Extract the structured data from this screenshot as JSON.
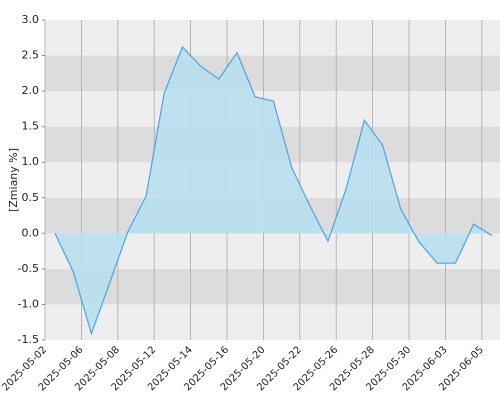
{
  "chart_data": {
    "type": "area",
    "y_label": "[Zmiany %]",
    "categories": [
      "2025-05-02",
      null,
      "2025-05-06",
      null,
      "2025-05-08",
      null,
      "2025-05-12",
      null,
      "2025-05-14",
      null,
      "2025-05-16",
      null,
      "2025-05-20",
      null,
      "2025-05-22",
      null,
      "2025-05-26",
      null,
      "2025-05-28",
      null,
      "2025-05-30",
      null,
      "2025-06-03",
      null,
      "2025-06-05"
    ],
    "series": [
      {
        "color": "#4aa3e8",
        "fill": "#b8dff0",
        "values": [
          0.0,
          -0.54,
          -1.41,
          -0.7,
          0.02,
          0.52,
          1.97,
          2.62,
          2.35,
          2.17,
          2.54,
          1.92,
          1.86,
          0.93,
          0.39,
          -0.11,
          0.63,
          1.59,
          1.24,
          0.34,
          -0.12,
          -0.42,
          -0.42,
          0.13,
          -0.03
        ]
      }
    ],
    "ylim": [
      -1.5,
      3.0
    ],
    "yticks": [
      {
        "value": -1.5,
        "label": "-1.5"
      },
      {
        "value": -1.0,
        "label": "-1.0"
      },
      -0.5,
      {
        "value": 0.0,
        "label": "0.0"
      },
      0.5,
      {
        "value": 1.0,
        "label": "1.0"
      },
      1.5,
      {
        "value": 2.0,
        "label": "2.0"
      },
      2.5,
      {
        "value": 3.0,
        "label": "3.0"
      }
    ],
    "grid": true
  }
}
